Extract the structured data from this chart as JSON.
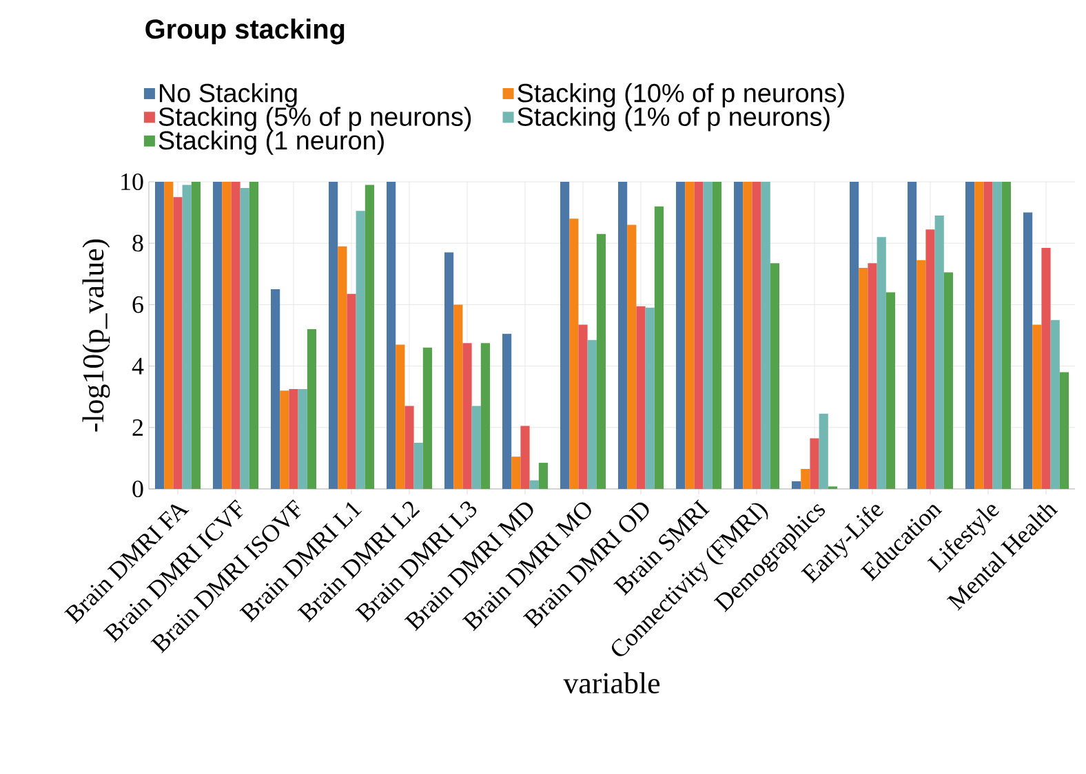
{
  "chart_data": {
    "type": "bar",
    "legend_title": "Group stacking",
    "xlabel": "variable",
    "ylabel": "-log10(p_value)",
    "categories": [
      "Brain DMRI FA",
      "Brain DMRI ICVF",
      "Brain DMRI ISOVF",
      "Brain DMRI L1",
      "Brain DMRI L2",
      "Brain DMRI L3",
      "Brain DMRI MD",
      "Brain DMRI MO",
      "Brain DMRI OD",
      "Brain SMRI",
      "Connectivity (FMRI)",
      "Demographics",
      "Early-Life",
      "Education",
      "Lifestyle",
      "Mental Health"
    ],
    "series": [
      {
        "name": "No Stacking",
        "color": "#4c78a8",
        "values": [
          10,
          10,
          6.5,
          10,
          10,
          7.7,
          5.05,
          10,
          10,
          10,
          10,
          0.25,
          10,
          10,
          10,
          9.0
        ]
      },
      {
        "name": "Stacking (10% of p neurons)",
        "color": "#f58518",
        "values": [
          10,
          10,
          3.2,
          7.9,
          4.7,
          6.0,
          1.05,
          8.8,
          8.6,
          10,
          10,
          0.65,
          7.2,
          7.45,
          10,
          5.35
        ]
      },
      {
        "name": "Stacking (5% of p neurons)",
        "color": "#e45756",
        "values": [
          9.5,
          10,
          3.25,
          6.35,
          2.7,
          4.75,
          2.05,
          5.35,
          5.95,
          10,
          10,
          1.65,
          7.35,
          8.45,
          10,
          7.85
        ]
      },
      {
        "name": "Stacking (1% of p neurons)",
        "color": "#72b7b2",
        "values": [
          9.9,
          9.8,
          3.25,
          9.05,
          1.5,
          2.7,
          0.28,
          4.85,
          5.9,
          10,
          10,
          2.45,
          8.2,
          8.9,
          10,
          5.5
        ]
      },
      {
        "name": "Stacking (1 neuron)",
        "color": "#54a24b",
        "values": [
          10,
          10,
          5.2,
          9.9,
          4.6,
          4.75,
          0.85,
          8.3,
          9.2,
          10,
          7.35,
          0.08,
          6.4,
          7.05,
          10,
          3.8
        ]
      }
    ],
    "ylim": [
      0,
      10
    ],
    "yticks": [
      0,
      2,
      4,
      6,
      8,
      10
    ],
    "grid": true,
    "legend": "top left"
  }
}
